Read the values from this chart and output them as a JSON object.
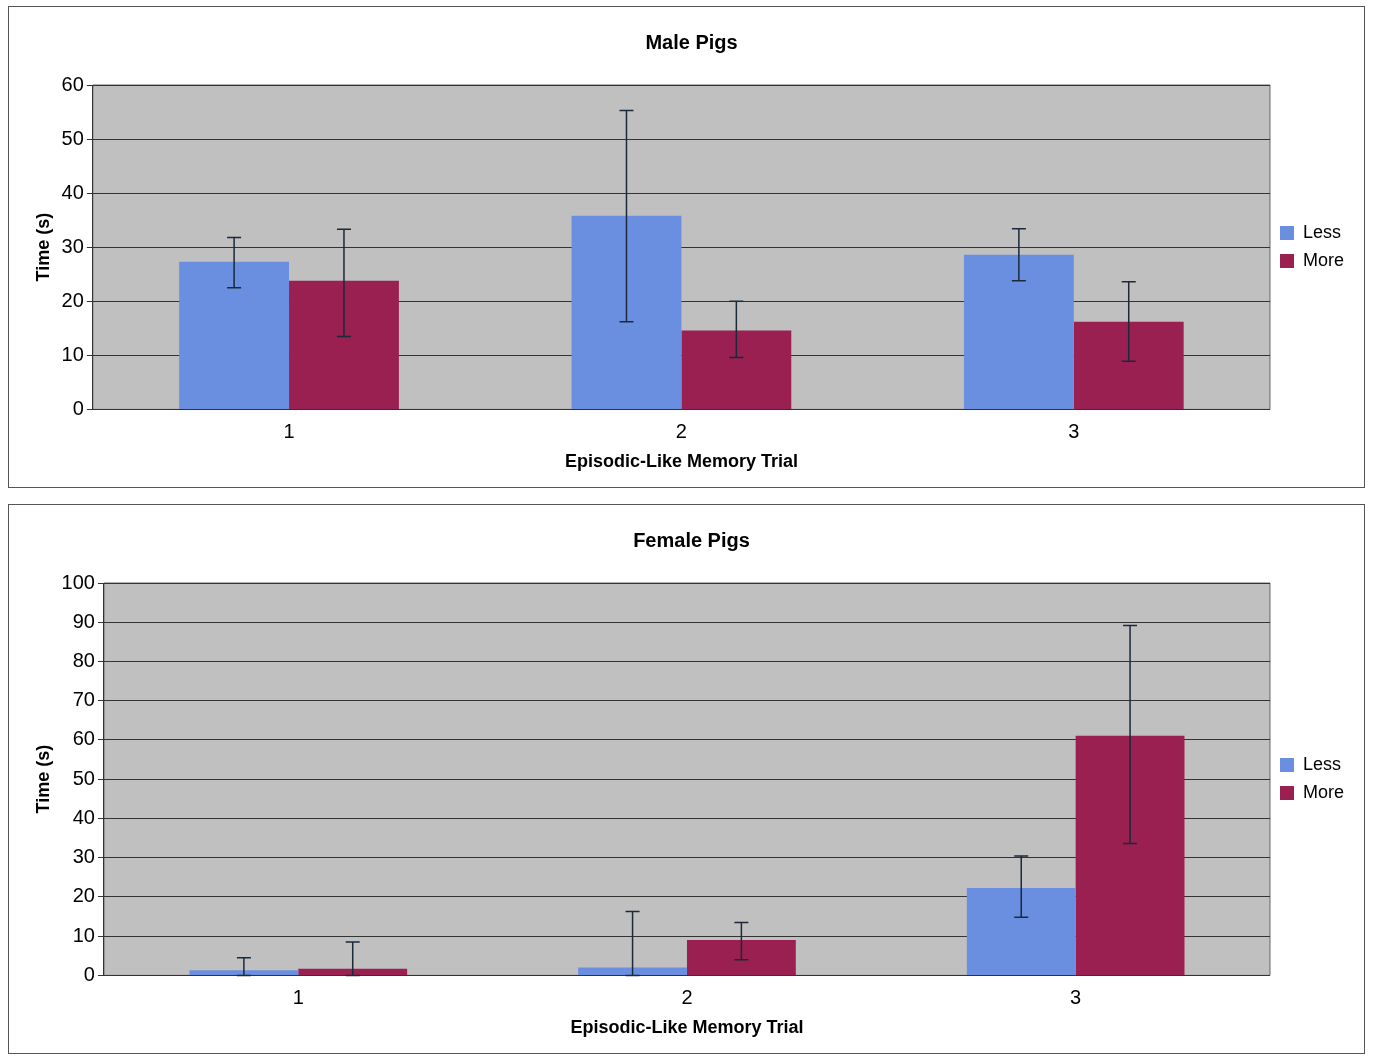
{
  "chart_data": [
    {
      "type": "bar",
      "title": "Male Pigs",
      "xlabel": "Episodic-Like Memory Trial",
      "ylabel": "Time (s)",
      "categories": [
        "1",
        "2",
        "3"
      ],
      "series": [
        {
          "name": "Less",
          "color": "#6b8fe0",
          "values": [
            27.3,
            35.8,
            28.6
          ],
          "errors": [
            [
              22.5,
              31.8
            ],
            [
              16.2,
              55.3
            ],
            [
              23.8,
              33.4
            ]
          ]
        },
        {
          "name": "More",
          "color": "#992050",
          "values": [
            23.8,
            14.6,
            16.2
          ],
          "errors": [
            [
              13.5,
              33.3
            ],
            [
              9.6,
              20
            ],
            [
              8.9,
              23.6
            ]
          ]
        }
      ],
      "ylim": [
        0,
        60
      ],
      "yticks": [
        0,
        10,
        20,
        30,
        40,
        50,
        60
      ],
      "grid": "y",
      "legend": "right"
    },
    {
      "type": "bar",
      "title": "Female Pigs",
      "xlabel": "Episodic-Like Memory Trial",
      "ylabel": "Time (s)",
      "categories": [
        "1",
        "2",
        "3"
      ],
      "series": [
        {
          "name": "Less",
          "color": "#6b8fe0",
          "values": [
            1.3,
            2,
            22.3
          ],
          "errors": [
            [
              0,
              4.5
            ],
            [
              0,
              16.3
            ],
            [
              14.8,
              30.4
            ]
          ]
        },
        {
          "name": "More",
          "color": "#992050",
          "values": [
            1.7,
            9,
            61.1
          ],
          "errors": [
            [
              0,
              8.5
            ],
            [
              4,
              13.5
            ],
            [
              33.6,
              89.2
            ]
          ]
        }
      ],
      "ylim": [
        0,
        100
      ],
      "yticks": [
        0,
        10,
        20,
        30,
        40,
        50,
        60,
        70,
        80,
        90,
        100
      ],
      "grid": "y",
      "legend": "right"
    }
  ]
}
